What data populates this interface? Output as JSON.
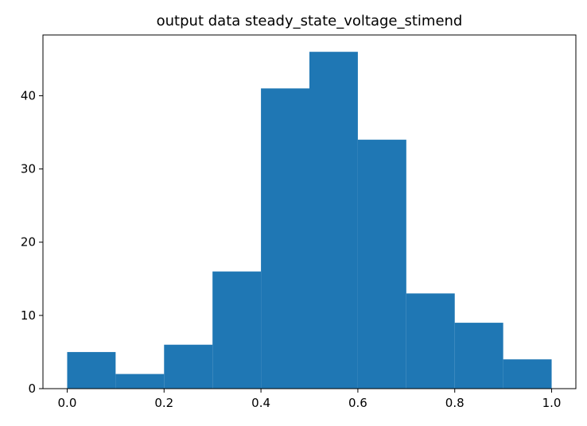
{
  "chart_data": {
    "type": "bar",
    "title": "output data steady_state_voltage_stimend",
    "xlabel": "",
    "ylabel": "",
    "bin_edges": [
      0.0,
      0.1,
      0.2,
      0.3,
      0.4,
      0.5,
      0.6,
      0.7,
      0.8,
      0.9,
      1.0
    ],
    "values": [
      5,
      2,
      6,
      16,
      41,
      46,
      34,
      13,
      9,
      4
    ],
    "xlim": [
      -0.05,
      1.05
    ],
    "ylim": [
      0,
      48.3
    ],
    "xticks": [
      0.0,
      0.2,
      0.4,
      0.6,
      0.8,
      1.0
    ],
    "xtick_labels": [
      "0.0",
      "0.2",
      "0.4",
      "0.6",
      "0.8",
      "1.0"
    ],
    "yticks": [
      0,
      10,
      20,
      30,
      40
    ],
    "ytick_labels": [
      "0",
      "10",
      "20",
      "30",
      "40"
    ],
    "grid": false,
    "bar_color": "#1f77b4"
  }
}
